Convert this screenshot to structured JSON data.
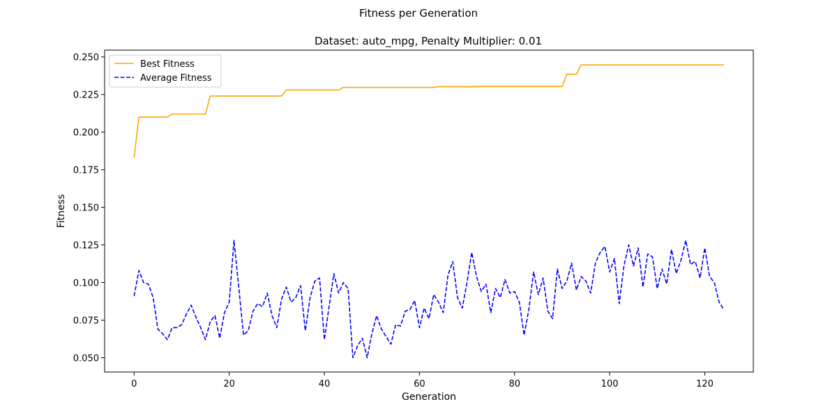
{
  "chart_data": {
    "type": "line",
    "title": "Fitness per Generation",
    "subtitle": "Dataset: auto_mpg, Penalty Multiplier: 0.01",
    "xlabel": "Generation",
    "ylabel": "Fitness",
    "xlim": [
      -6.2,
      130.2
    ],
    "ylim": [
      0.0405,
      0.2545
    ],
    "xticks": [
      0,
      20,
      40,
      60,
      80,
      100,
      120
    ],
    "yticks": [
      0.05,
      0.075,
      0.1,
      0.125,
      0.15,
      0.175,
      0.2,
      0.225,
      0.25
    ],
    "ytick_labels": [
      "0.050",
      "0.075",
      "0.100",
      "0.125",
      "0.150",
      "0.175",
      "0.200",
      "0.225",
      "0.250"
    ],
    "grid": false,
    "legend_position": "top-left",
    "x": [
      0,
      1,
      2,
      3,
      4,
      5,
      6,
      7,
      8,
      9,
      10,
      11,
      12,
      13,
      14,
      15,
      16,
      17,
      18,
      19,
      20,
      21,
      22,
      23,
      24,
      25,
      26,
      27,
      28,
      29,
      30,
      31,
      32,
      33,
      34,
      35,
      36,
      37,
      38,
      39,
      40,
      41,
      42,
      43,
      44,
      45,
      46,
      47,
      48,
      49,
      50,
      51,
      52,
      53,
      54,
      55,
      56,
      57,
      58,
      59,
      60,
      61,
      62,
      63,
      64,
      65,
      66,
      67,
      68,
      69,
      70,
      71,
      72,
      73,
      74,
      75,
      76,
      77,
      78,
      79,
      80,
      81,
      82,
      83,
      84,
      85,
      86,
      87,
      88,
      89,
      90,
      91,
      92,
      93,
      94,
      95,
      96,
      97,
      98,
      99,
      100,
      101,
      102,
      103,
      104,
      105,
      106,
      107,
      108,
      109,
      110,
      111,
      112,
      113,
      114,
      115,
      116,
      117,
      118,
      119,
      120,
      121,
      122,
      123,
      124
    ],
    "series": [
      {
        "name": "Best Fitness",
        "color": "#ffa500",
        "style": "solid",
        "values": [
          0.183,
          0.21,
          0.21,
          0.21,
          0.21,
          0.21,
          0.21,
          0.21,
          0.212,
          0.212,
          0.212,
          0.212,
          0.212,
          0.212,
          0.212,
          0.212,
          0.224,
          0.224,
          0.224,
          0.224,
          0.224,
          0.224,
          0.224,
          0.224,
          0.224,
          0.224,
          0.224,
          0.224,
          0.224,
          0.224,
          0.224,
          0.224,
          0.228,
          0.228,
          0.228,
          0.228,
          0.228,
          0.228,
          0.228,
          0.228,
          0.228,
          0.228,
          0.228,
          0.228,
          0.2297,
          0.2297,
          0.2297,
          0.2297,
          0.2297,
          0.2297,
          0.2297,
          0.2297,
          0.2297,
          0.2297,
          0.2297,
          0.2297,
          0.2297,
          0.2297,
          0.2297,
          0.2297,
          0.2297,
          0.2297,
          0.2297,
          0.2297,
          0.2302,
          0.2302,
          0.2302,
          0.2302,
          0.2302,
          0.2302,
          0.2302,
          0.2302,
          0.2304,
          0.2304,
          0.2304,
          0.2304,
          0.2304,
          0.2304,
          0.2304,
          0.2304,
          0.2304,
          0.2304,
          0.2304,
          0.2304,
          0.2304,
          0.2304,
          0.2304,
          0.2304,
          0.2304,
          0.2304,
          0.2304,
          0.2385,
          0.2385,
          0.2385,
          0.2447,
          0.2447,
          0.2447,
          0.2447,
          0.2447,
          0.2447,
          0.2447,
          0.2447,
          0.2447,
          0.2447,
          0.2447,
          0.2447,
          0.2447,
          0.2447,
          0.2447,
          0.2447,
          0.2447,
          0.2447,
          0.2447,
          0.2447,
          0.2447,
          0.2447,
          0.2447,
          0.2447,
          0.2447,
          0.2447,
          0.2447,
          0.2447,
          0.2447,
          0.2447,
          0.2447
        ]
      },
      {
        "name": "Average Fitness",
        "color": "#0000ff",
        "style": "dashed",
        "values": [
          0.091,
          0.108,
          0.1,
          0.099,
          0.09,
          0.069,
          0.066,
          0.062,
          0.07,
          0.07,
          0.072,
          0.079,
          0.085,
          0.077,
          0.07,
          0.062,
          0.074,
          0.078,
          0.063,
          0.08,
          0.087,
          0.128,
          0.097,
          0.065,
          0.068,
          0.081,
          0.086,
          0.084,
          0.093,
          0.078,
          0.07,
          0.089,
          0.097,
          0.087,
          0.09,
          0.098,
          0.068,
          0.09,
          0.101,
          0.103,
          0.062,
          0.084,
          0.106,
          0.093,
          0.1,
          0.096,
          0.05,
          0.058,
          0.063,
          0.05,
          0.066,
          0.078,
          0.069,
          0.064,
          0.059,
          0.072,
          0.071,
          0.081,
          0.082,
          0.088,
          0.07,
          0.083,
          0.076,
          0.092,
          0.087,
          0.08,
          0.105,
          0.114,
          0.09,
          0.083,
          0.1,
          0.12,
          0.104,
          0.094,
          0.099,
          0.08,
          0.096,
          0.09,
          0.102,
          0.093,
          0.094,
          0.087,
          0.065,
          0.082,
          0.107,
          0.092,
          0.103,
          0.081,
          0.076,
          0.109,
          0.096,
          0.101,
          0.113,
          0.095,
          0.104,
          0.101,
          0.093,
          0.113,
          0.12,
          0.124,
          0.107,
          0.116,
          0.086,
          0.111,
          0.125,
          0.111,
          0.123,
          0.097,
          0.119,
          0.117,
          0.096,
          0.109,
          0.099,
          0.122,
          0.106,
          0.115,
          0.128,
          0.112,
          0.114,
          0.103,
          0.123,
          0.104,
          0.1,
          0.087,
          0.082
        ]
      }
    ]
  }
}
